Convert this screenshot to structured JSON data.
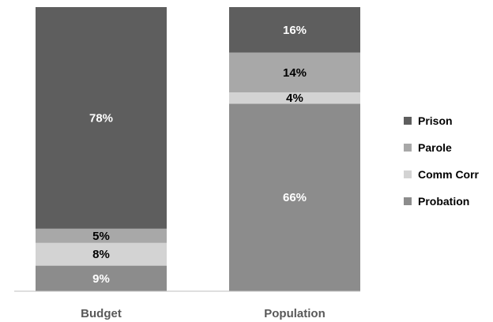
{
  "chart_data": {
    "type": "bar",
    "stacked": true,
    "percent": true,
    "categories": [
      "Budget",
      "Population"
    ],
    "series": [
      {
        "name": "Probation",
        "color": "#8c8c8c",
        "label_color": "#ffffff",
        "values": [
          9,
          66
        ],
        "labels": [
          "9%",
          "66%"
        ]
      },
      {
        "name": "Comm Corr",
        "color": "#d3d3d3",
        "label_color": "#000000",
        "values": [
          8,
          4
        ],
        "labels": [
          "8%",
          "4%"
        ]
      },
      {
        "name": "Parole",
        "color": "#a8a8a8",
        "label_color": "#000000",
        "values": [
          5,
          14
        ],
        "labels": [
          "5%",
          "14%"
        ]
      },
      {
        "name": "Prison",
        "color": "#5e5e5e",
        "label_color": "#ffffff",
        "values": [
          78,
          16
        ],
        "labels": [
          "78%",
          "16%"
        ]
      }
    ],
    "legend_order": [
      "Prison",
      "Parole",
      "Comm Corr",
      "Probation"
    ],
    "legend_position": "right",
    "grid": false,
    "ylim": [
      0,
      100
    ],
    "title": "",
    "xlabel": "",
    "ylabel": ""
  }
}
